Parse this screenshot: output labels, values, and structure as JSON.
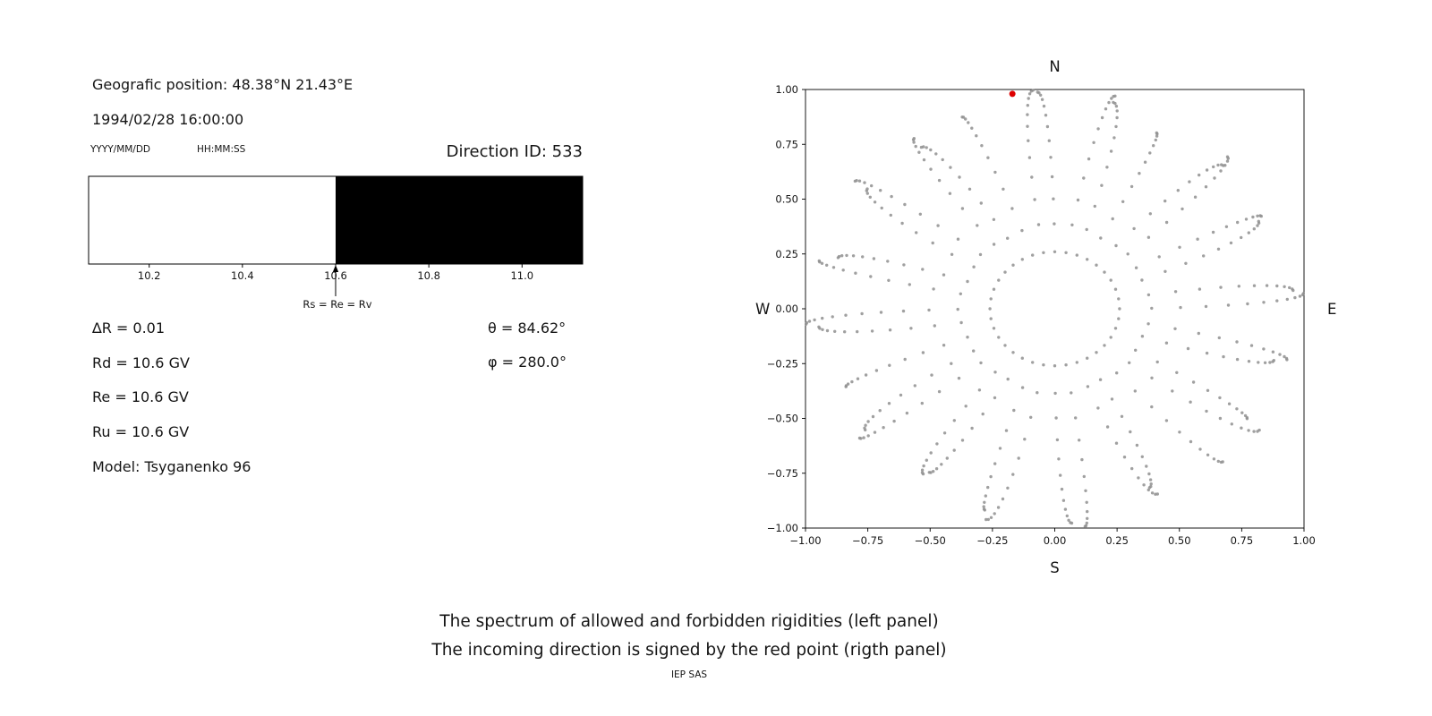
{
  "header": {
    "geographic_position": "Geografic position: 48.38°N 21.43°E",
    "datetime": "1994/02/28 16:00:00",
    "date_format_label": "YYYY/MM/DD",
    "time_format_label": "HH:MM:SS",
    "direction_id": "Direction ID: 533"
  },
  "parameters": {
    "delta_r": "∆R = 0.01",
    "rd": "Rd = 10.6 GV",
    "re": "Re = 10.6 GV",
    "ru": "Ru = 10.6 GV",
    "model": "Model: Tsyganenko 96",
    "theta": "θ = 84.62°",
    "phi": "φ = 280.0°"
  },
  "caption": {
    "line1": "The spectrum of allowed and forbidden rigidities (left panel)",
    "line2": "The incoming direction is signed by the red point (rigth panel)",
    "credit": "IEP SAS"
  },
  "chart_data": [
    {
      "id": "rigidity_spectrum",
      "type": "bar",
      "title": "",
      "xlabel": "",
      "ylabel": "",
      "xlim": [
        10.07,
        11.13
      ],
      "xticks": [
        10.2,
        10.4,
        10.6,
        10.8,
        11.0
      ],
      "xtick_labels": [
        "10.2",
        "10.4",
        "10.6",
        "10.8",
        "11.0"
      ],
      "regions": [
        {
          "name": "allowed",
          "from": 10.07,
          "to": 10.6,
          "color": "#ffffff"
        },
        {
          "name": "forbidden",
          "from": 10.6,
          "to": 11.13,
          "color": "#000000"
        }
      ],
      "annotation": {
        "text": "Rs = Re = Rv",
        "x": 10.6
      },
      "values": {
        "deltaR": 0.01,
        "Rd_GV": 10.6,
        "Re_GV": 10.6,
        "Ru_GV": 10.6,
        "theta_deg": 84.62,
        "phi_deg": 280.0
      }
    },
    {
      "id": "asymptotic_directions",
      "type": "scatter",
      "title": "",
      "xlim": [
        -1.0,
        1.0
      ],
      "ylim": [
        -1.0,
        1.0
      ],
      "xticks": [
        -1.0,
        -0.75,
        -0.5,
        -0.25,
        0.0,
        0.25,
        0.5,
        0.75,
        1.0
      ],
      "yticks": [
        -1.0,
        -0.75,
        -0.5,
        -0.25,
        0.0,
        0.25,
        0.5,
        0.75,
        1.0
      ],
      "xtick_labels": [
        "−1.00",
        "−0.75",
        "−0.50",
        "−0.25",
        "0.00",
        "0.25",
        "0.50",
        "0.75",
        "1.00"
      ],
      "ytick_labels": [
        "−1.00",
        "−0.75",
        "−0.50",
        "−0.25",
        "0.00",
        "0.25",
        "0.50",
        "0.75",
        "1.00"
      ],
      "compass": {
        "north": "N",
        "south": "S",
        "east": "E",
        "west": "W"
      },
      "dot_color": "#8f8f8f",
      "red_point": {
        "x": -0.17,
        "y": 0.98,
        "color": "#dd0000",
        "label": "incoming direction"
      },
      "rays": {
        "count": 36,
        "azimuth_step_deg": 10,
        "r_inner": 0.26,
        "points_per_ray": 13,
        "density": "dense-outward",
        "r_outer": [
          1.0,
          0.96,
          0.91,
          0.93,
          0.98,
          0.94,
          0.9,
          0.97,
          1.0,
          0.99,
          1.0,
          0.95,
          0.91,
          0.96,
          0.99,
          0.93,
          0.9,
          0.97,
          1.0,
          0.95,
          0.91,
          0.94,
          0.98,
          0.92,
          0.9,
          0.96,
          1.0,
          0.98,
          1.0,
          0.94,
          0.9,
          0.97,
          0.99,
          0.92,
          0.91,
          0.96
        ],
        "bend_deg": [
          4,
          -5,
          6,
          -3,
          5,
          -6,
          3,
          6,
          -4,
          4,
          -5,
          3,
          6,
          -4,
          4,
          -6,
          5,
          -3,
          4,
          -5,
          3,
          6,
          -3,
          5,
          -4,
          3,
          -6,
          4,
          -3,
          6,
          -5,
          4,
          6,
          -3,
          5,
          -4
        ]
      }
    }
  ]
}
